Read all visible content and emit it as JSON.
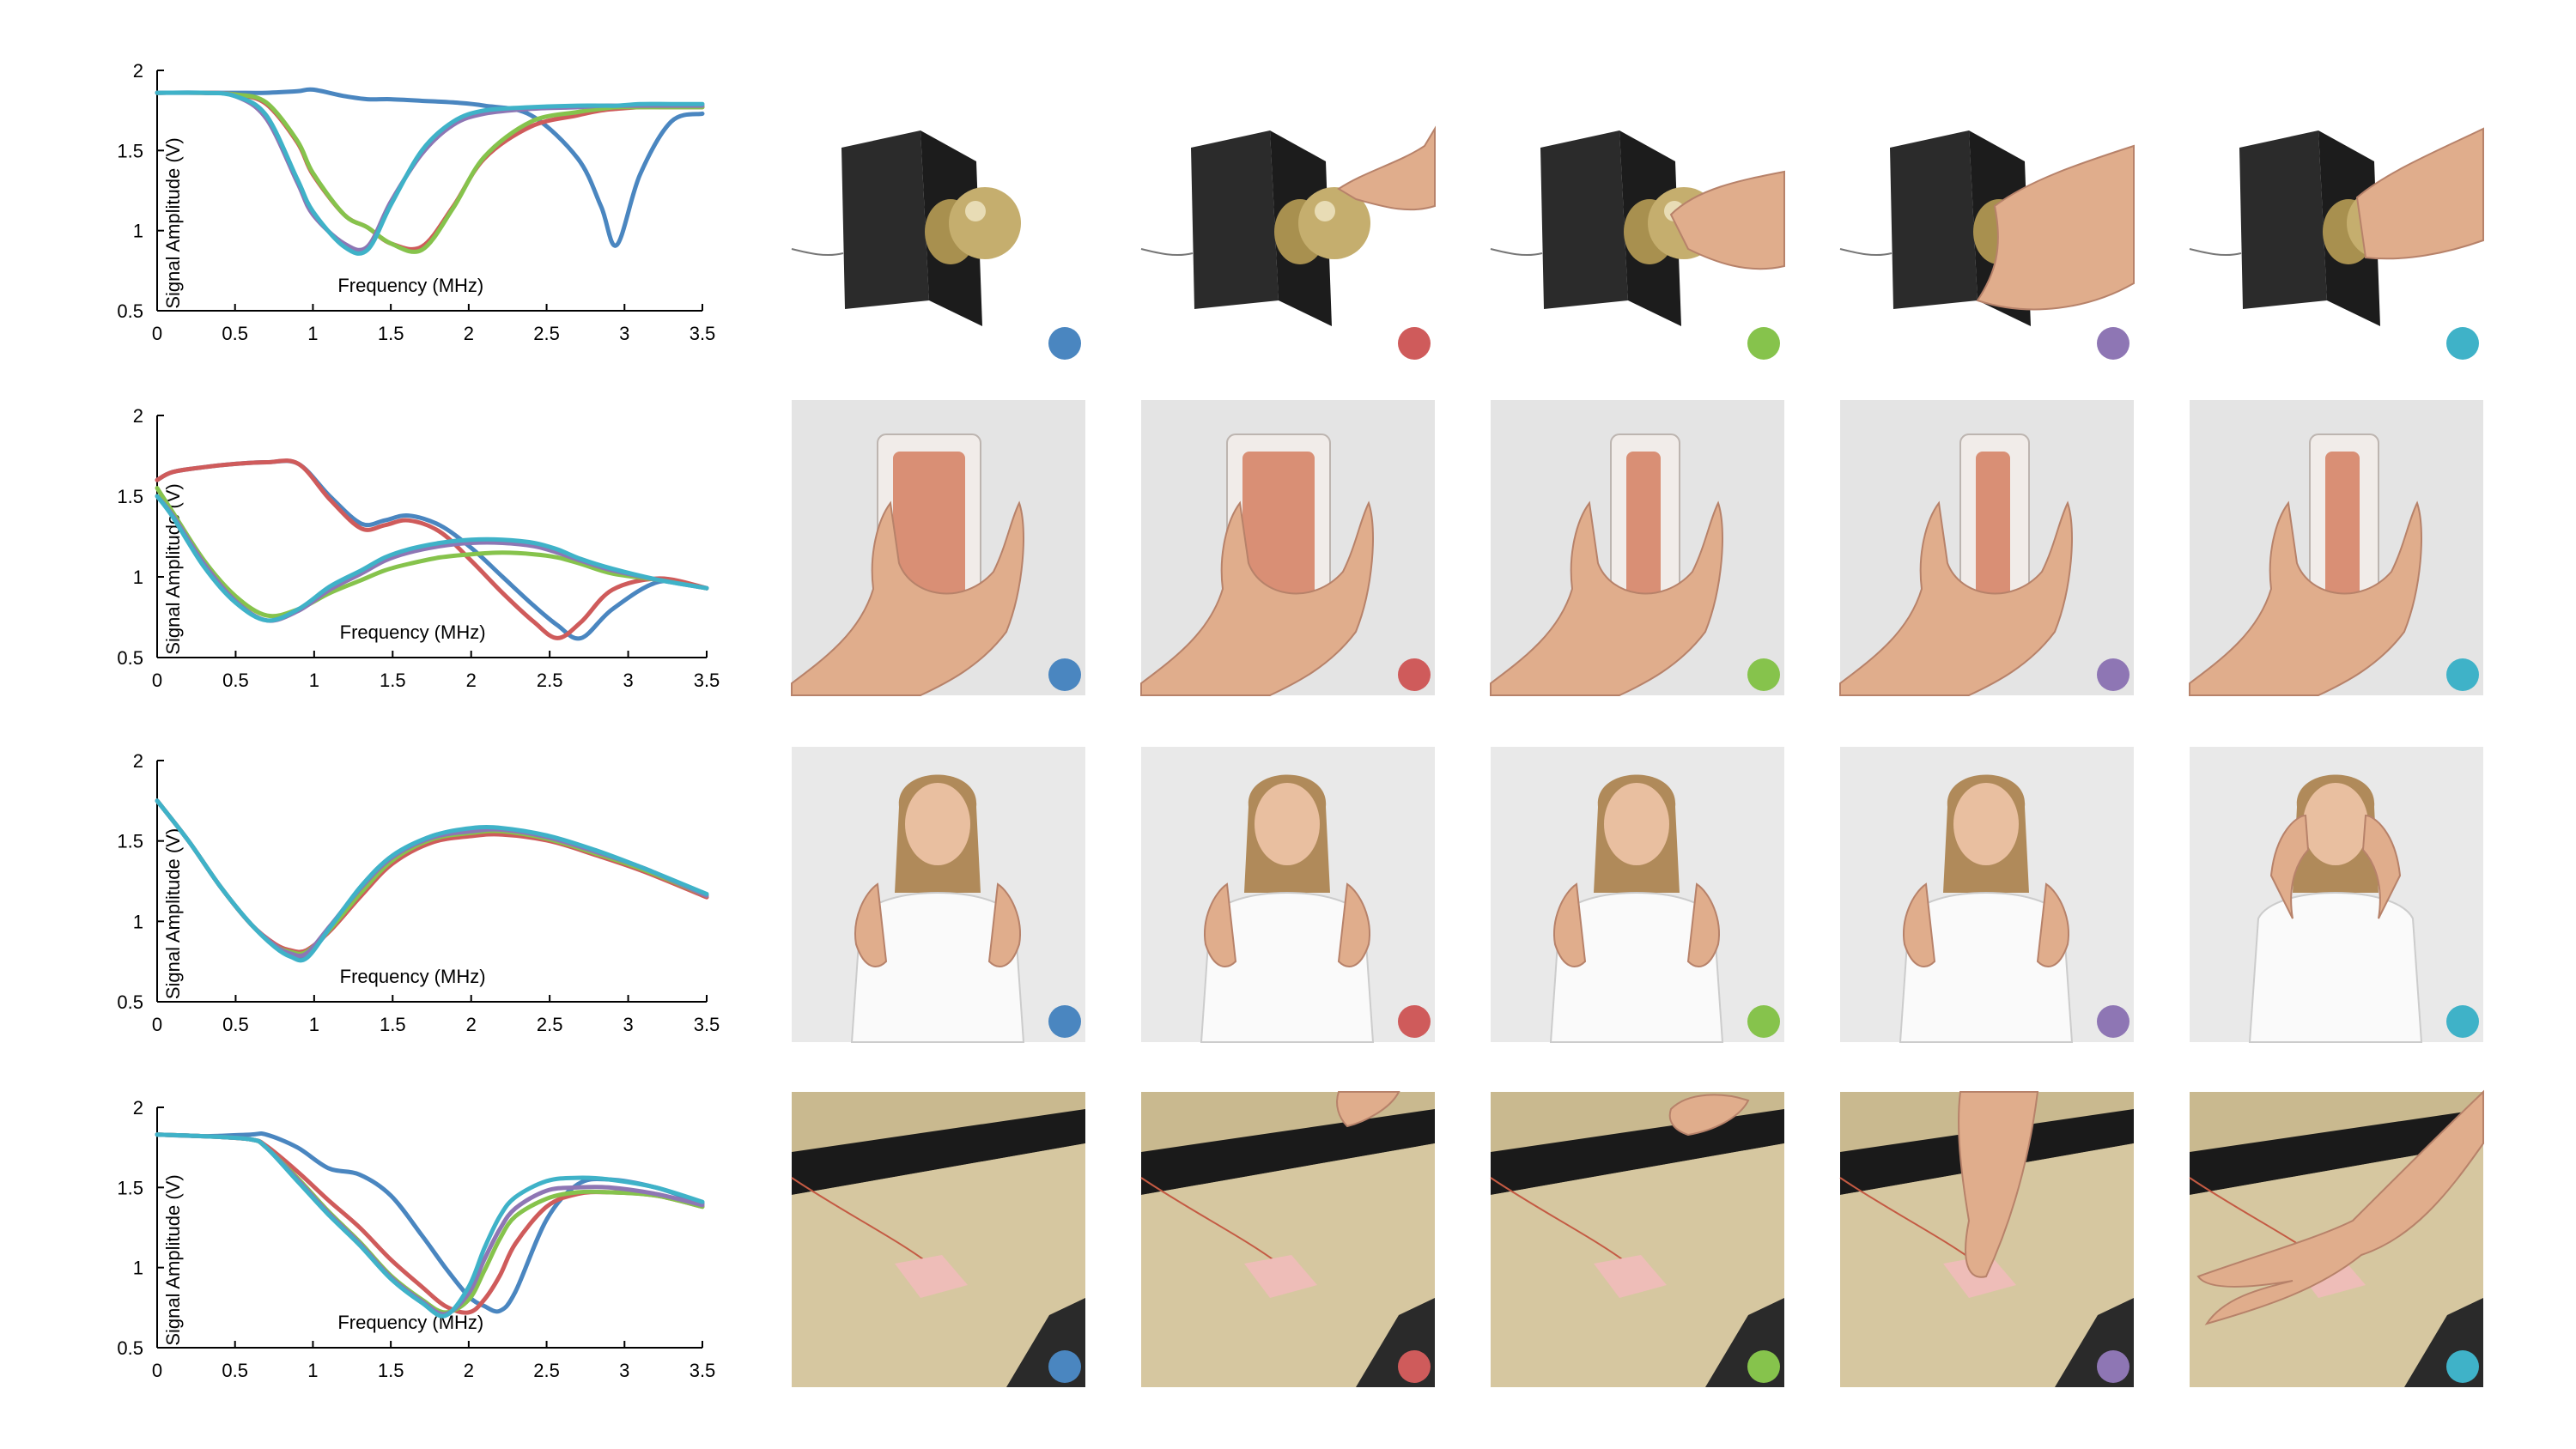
{
  "colors": {
    "blue": "#4a86c0",
    "red": "#cf5b5b",
    "green": "#86c34c",
    "purple": "#8e76b4",
    "cyan": "#3fb2c8",
    "axis": "#000000"
  },
  "marker_colors": [
    "blue",
    "red",
    "green",
    "purple",
    "cyan"
  ],
  "photo_rows": [
    {
      "subject": "doorknob",
      "backgrounds": [
        "#ffffff",
        "#ffffff",
        "#ffffff",
        "#ffffff",
        "#ffffff"
      ]
    },
    {
      "subject": "phone",
      "backgrounds": [
        "#e4e4e4",
        "#e4e4e4",
        "#e4e4e4",
        "#e4e4e4",
        "#e4e4e4"
      ]
    },
    {
      "subject": "person",
      "backgrounds": [
        "#e9e9e9",
        "#e9e9e9",
        "#e9e9e9",
        "#e9e9e9",
        "#e9e9e9"
      ]
    },
    {
      "subject": "water",
      "backgrounds": [
        "#c9b98f",
        "#c9b98f",
        "#c9b98f",
        "#c9b98f",
        "#c9b98f"
      ]
    }
  ],
  "chart_data": [
    {
      "type": "line",
      "xlabel": "Frequency (MHz)",
      "ylabel": "Signal Amplitude (V)",
      "xlim": [
        0,
        3.5
      ],
      "ylim": [
        0.5,
        2
      ],
      "xticks": [
        "0",
        "0.5",
        "1",
        "1.5",
        "2",
        "2.5",
        "3",
        "3.5"
      ],
      "yticks": [
        "0.5",
        "1",
        "1.5",
        "2"
      ],
      "x": [
        0,
        0.3,
        0.5,
        0.7,
        0.9,
        1.0,
        1.2,
        1.35,
        1.5,
        1.7,
        1.9,
        2.1,
        2.4,
        2.7,
        2.85,
        2.95,
        3.1,
        3.3,
        3.5
      ],
      "series": [
        {
          "color": "blue",
          "values": [
            1.86,
            1.86,
            1.86,
            1.86,
            1.87,
            1.88,
            1.84,
            1.82,
            1.82,
            1.81,
            1.8,
            1.78,
            1.72,
            1.45,
            1.15,
            0.91,
            1.35,
            1.68,
            1.73
          ]
        },
        {
          "color": "red",
          "values": [
            1.86,
            1.86,
            1.85,
            1.79,
            1.55,
            1.35,
            1.1,
            1.02,
            0.92,
            0.9,
            1.15,
            1.45,
            1.65,
            1.72,
            1.75,
            1.76,
            1.77,
            1.77,
            1.77
          ]
        },
        {
          "color": "green",
          "values": [
            1.86,
            1.86,
            1.85,
            1.8,
            1.56,
            1.36,
            1.1,
            1.02,
            0.92,
            0.88,
            1.14,
            1.46,
            1.68,
            1.74,
            1.76,
            1.77,
            1.77,
            1.77,
            1.77
          ]
        },
        {
          "color": "purple",
          "values": [
            1.86,
            1.86,
            1.84,
            1.7,
            1.3,
            1.1,
            0.92,
            0.9,
            1.18,
            1.48,
            1.66,
            1.73,
            1.76,
            1.77,
            1.78,
            1.78,
            1.78,
            1.78,
            1.78
          ]
        },
        {
          "color": "cyan",
          "values": [
            1.86,
            1.86,
            1.84,
            1.72,
            1.32,
            1.12,
            0.9,
            0.88,
            1.16,
            1.5,
            1.68,
            1.75,
            1.77,
            1.78,
            1.78,
            1.78,
            1.79,
            1.79,
            1.79
          ]
        }
      ]
    },
    {
      "type": "line",
      "xlabel": "Frequency (MHz)",
      "ylabel": "Signal Amplitude (V)",
      "xlim": [
        0,
        3.5
      ],
      "ylim": [
        0.5,
        2
      ],
      "xticks": [
        "0",
        "0.5",
        "1",
        "1.5",
        "2",
        "2.5",
        "3",
        "3.5"
      ],
      "yticks": [
        "0.5",
        "1",
        "1.5",
        "2"
      ],
      "x": [
        0,
        0.1,
        0.3,
        0.5,
        0.7,
        0.9,
        1.1,
        1.3,
        1.45,
        1.6,
        1.8,
        2.0,
        2.2,
        2.4,
        2.55,
        2.7,
        2.9,
        3.2,
        3.5
      ],
      "series": [
        {
          "color": "blue",
          "values": [
            1.6,
            1.65,
            1.68,
            1.7,
            1.71,
            1.7,
            1.5,
            1.33,
            1.35,
            1.38,
            1.32,
            1.18,
            1.0,
            0.82,
            0.7,
            0.62,
            0.8,
            0.97,
            0.93
          ]
        },
        {
          "color": "red",
          "values": [
            1.6,
            1.65,
            1.68,
            1.7,
            1.71,
            1.7,
            1.48,
            1.3,
            1.32,
            1.35,
            1.28,
            1.1,
            0.9,
            0.72,
            0.62,
            0.72,
            0.92,
            0.99,
            0.93
          ]
        },
        {
          "color": "green",
          "values": [
            1.55,
            1.4,
            1.1,
            0.88,
            0.76,
            0.8,
            0.9,
            0.98,
            1.04,
            1.08,
            1.12,
            1.14,
            1.15,
            1.14,
            1.12,
            1.08,
            1.02,
            0.98,
            0.93
          ]
        },
        {
          "color": "purple",
          "values": [
            1.5,
            1.38,
            1.08,
            0.85,
            0.73,
            0.79,
            0.92,
            1.02,
            1.1,
            1.15,
            1.19,
            1.21,
            1.21,
            1.19,
            1.15,
            1.1,
            1.04,
            0.98,
            0.93
          ]
        },
        {
          "color": "cyan",
          "values": [
            1.5,
            1.37,
            1.06,
            0.84,
            0.73,
            0.8,
            0.94,
            1.04,
            1.12,
            1.17,
            1.21,
            1.23,
            1.23,
            1.21,
            1.17,
            1.11,
            1.05,
            0.98,
            0.93
          ]
        }
      ]
    },
    {
      "type": "line",
      "xlabel": "Frequency (MHz)",
      "ylabel": "Signal Amplitude (V)",
      "xlim": [
        0,
        3.5
      ],
      "ylim": [
        0.5,
        2
      ],
      "xticks": [
        "0",
        "0.5",
        "1",
        "1.5",
        "2",
        "2.5",
        "3",
        "3.5"
      ],
      "yticks": [
        "0.5",
        "1",
        "1.5",
        "2"
      ],
      "x": [
        0,
        0.2,
        0.4,
        0.6,
        0.75,
        0.85,
        0.95,
        1.1,
        1.3,
        1.5,
        1.75,
        2.0,
        2.2,
        2.5,
        2.8,
        3.1,
        3.5
      ],
      "series": [
        {
          "color": "blue",
          "values": [
            1.75,
            1.5,
            1.22,
            0.98,
            0.85,
            0.8,
            0.79,
            0.95,
            1.2,
            1.4,
            1.53,
            1.57,
            1.57,
            1.52,
            1.43,
            1.33,
            1.16
          ]
        },
        {
          "color": "red",
          "values": [
            1.75,
            1.5,
            1.22,
            0.98,
            0.86,
            0.82,
            0.82,
            0.94,
            1.16,
            1.36,
            1.49,
            1.53,
            1.54,
            1.5,
            1.41,
            1.31,
            1.15
          ]
        },
        {
          "color": "green",
          "values": [
            1.75,
            1.5,
            1.22,
            0.98,
            0.85,
            0.81,
            0.81,
            0.95,
            1.18,
            1.38,
            1.51,
            1.55,
            1.56,
            1.51,
            1.42,
            1.32,
            1.16
          ]
        },
        {
          "color": "purple",
          "values": [
            1.75,
            1.5,
            1.22,
            0.98,
            0.85,
            0.8,
            0.8,
            0.97,
            1.21,
            1.4,
            1.52,
            1.56,
            1.57,
            1.52,
            1.43,
            1.33,
            1.16
          ]
        },
        {
          "color": "cyan",
          "values": [
            1.75,
            1.5,
            1.22,
            0.98,
            0.84,
            0.78,
            0.77,
            0.96,
            1.22,
            1.41,
            1.53,
            1.58,
            1.58,
            1.53,
            1.44,
            1.33,
            1.17
          ]
        }
      ]
    },
    {
      "type": "line",
      "xlabel": "Frequency (MHz)",
      "ylabel": "Signal Amplitude (V)",
      "xlim": [
        0,
        3.5
      ],
      "ylim": [
        0.5,
        2
      ],
      "xticks": [
        "0",
        "0.5",
        "1",
        "1.5",
        "2",
        "2.5",
        "3",
        "3.5"
      ],
      "yticks": [
        "0.5",
        "1",
        "1.5",
        "2"
      ],
      "x": [
        0,
        0.3,
        0.6,
        0.7,
        0.9,
        1.1,
        1.3,
        1.5,
        1.7,
        1.85,
        2.0,
        2.1,
        2.2,
        2.3,
        2.5,
        2.7,
        2.9,
        3.2,
        3.5
      ],
      "series": [
        {
          "color": "blue",
          "values": [
            1.83,
            1.82,
            1.83,
            1.83,
            1.75,
            1.62,
            1.58,
            1.45,
            1.2,
            1.0,
            0.82,
            0.76,
            0.73,
            0.85,
            1.3,
            1.52,
            1.55,
            1.5,
            1.4
          ]
        },
        {
          "color": "red",
          "values": [
            1.83,
            1.82,
            1.8,
            1.76,
            1.6,
            1.42,
            1.25,
            1.05,
            0.88,
            0.76,
            0.72,
            0.8,
            0.95,
            1.15,
            1.38,
            1.46,
            1.47,
            1.45,
            1.38
          ]
        },
        {
          "color": "green",
          "values": [
            1.83,
            1.82,
            1.8,
            1.75,
            1.56,
            1.35,
            1.16,
            0.95,
            0.8,
            0.72,
            0.8,
            0.98,
            1.18,
            1.32,
            1.43,
            1.47,
            1.47,
            1.45,
            1.38
          ]
        },
        {
          "color": "purple",
          "values": [
            1.83,
            1.82,
            1.8,
            1.75,
            1.55,
            1.34,
            1.15,
            0.94,
            0.79,
            0.71,
            0.84,
            1.05,
            1.24,
            1.37,
            1.48,
            1.5,
            1.5,
            1.46,
            1.39
          ]
        },
        {
          "color": "cyan",
          "values": [
            1.83,
            1.82,
            1.8,
            1.75,
            1.54,
            1.33,
            1.14,
            0.93,
            0.78,
            0.7,
            0.88,
            1.12,
            1.32,
            1.44,
            1.54,
            1.56,
            1.55,
            1.5,
            1.41
          ]
        }
      ]
    }
  ]
}
